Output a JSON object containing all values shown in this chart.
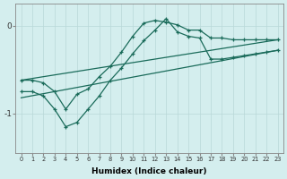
{
  "xlabel": "Humidex (Indice chaleur)",
  "bg_color": "#d4eeee",
  "grid_color": "#b8d8d8",
  "line_color": "#1a6b5a",
  "xlim": [
    -0.5,
    23.5
  ],
  "ylim": [
    -1.45,
    0.25
  ],
  "yticks": [
    -1,
    0
  ],
  "xticks": [
    0,
    1,
    2,
    3,
    4,
    5,
    6,
    7,
    8,
    9,
    10,
    11,
    12,
    13,
    14,
    15,
    16,
    17,
    18,
    19,
    20,
    21,
    22,
    23
  ],
  "series_wavy1_x": [
    0,
    1,
    2,
    3,
    4,
    5,
    6,
    7,
    8,
    9,
    10,
    11,
    12,
    13,
    14,
    15,
    16,
    17,
    18,
    19,
    20,
    21,
    22,
    23
  ],
  "series_wavy1_y": [
    -0.62,
    -0.62,
    -0.65,
    -0.75,
    -0.95,
    -0.78,
    -0.72,
    -0.58,
    -0.46,
    -0.3,
    -0.12,
    0.03,
    0.06,
    0.04,
    0.01,
    -0.05,
    -0.05,
    -0.14,
    -0.14,
    -0.16,
    -0.16,
    -0.16,
    -0.16,
    -0.16
  ],
  "series_wavy2_x": [
    0,
    1,
    2,
    3,
    4,
    5,
    6,
    7,
    8,
    9,
    10,
    11,
    12,
    13,
    14,
    15,
    16,
    17,
    18,
    19,
    20,
    21,
    22,
    23
  ],
  "series_wavy2_y": [
    -0.75,
    -0.75,
    -0.8,
    -0.95,
    -1.15,
    -1.1,
    -0.95,
    -0.8,
    -0.62,
    -0.48,
    -0.32,
    -0.17,
    -0.05,
    0.08,
    -0.07,
    -0.12,
    -0.14,
    -0.38,
    -0.38,
    -0.36,
    -0.34,
    -0.32,
    -0.3,
    -0.28
  ],
  "line1_x": [
    0,
    23
  ],
  "line1_y": [
    -0.62,
    -0.16
  ],
  "line2_x": [
    0,
    23
  ],
  "line2_y": [
    -0.82,
    -0.28
  ]
}
